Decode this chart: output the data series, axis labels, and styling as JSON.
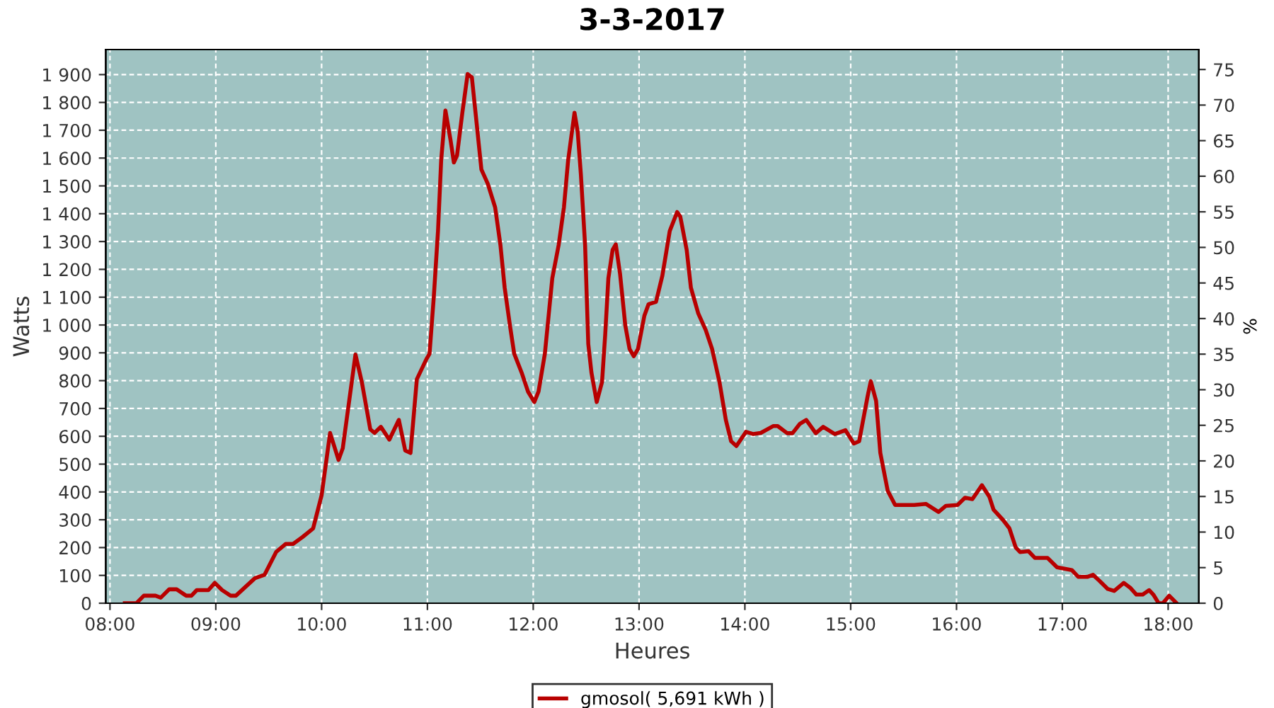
{
  "chart_data": {
    "type": "line",
    "title": "3-3-2017",
    "xlabel": "Heures",
    "ylabel": "Watts",
    "y2label": "%",
    "x": [
      8.14,
      8.25,
      8.32,
      8.43,
      8.48,
      8.56,
      8.63,
      8.72,
      8.77,
      8.82,
      8.93,
      8.99,
      9.06,
      9.14,
      9.19,
      9.37,
      9.46,
      9.57,
      9.66,
      9.73,
      9.82,
      9.92,
      10.0,
      10.08,
      10.16,
      10.2,
      10.32,
      10.38,
      10.46,
      10.5,
      10.56,
      10.64,
      10.73,
      10.79,
      10.84,
      10.9,
      10.99,
      11.02,
      11.06,
      11.1,
      11.13,
      11.17,
      11.22,
      11.25,
      11.28,
      11.33,
      11.38,
      11.42,
      11.45,
      11.51,
      11.57,
      11.64,
      11.69,
      11.73,
      11.78,
      11.82,
      11.89,
      11.95,
      12.01,
      12.05,
      12.11,
      12.18,
      12.24,
      12.29,
      12.33,
      12.39,
      12.42,
      12.45,
      12.49,
      12.52,
      12.55,
      12.6,
      12.65,
      12.68,
      12.71,
      12.75,
      12.78,
      12.82,
      12.87,
      12.91,
      12.95,
      12.99,
      13.05,
      13.09,
      13.16,
      13.22,
      13.29,
      13.36,
      13.39,
      13.45,
      13.49,
      13.56,
      13.63,
      13.69,
      13.76,
      13.82,
      13.87,
      13.92,
      14.01,
      14.08,
      14.15,
      14.27,
      14.31,
      14.4,
      14.45,
      14.52,
      14.58,
      14.67,
      14.74,
      14.85,
      14.95,
      15.03,
      15.08,
      15.16,
      15.19,
      15.24,
      15.28,
      15.35,
      15.42,
      15.6,
      15.71,
      15.83,
      15.9,
      16.01,
      16.08,
      16.15,
      16.24,
      16.31,
      16.35,
      16.44,
      16.5,
      16.56,
      16.6,
      16.68,
      16.74,
      16.86,
      16.95,
      17.09,
      17.15,
      17.24,
      17.29,
      17.35,
      17.43,
      17.49,
      17.58,
      17.64,
      17.7,
      17.76,
      17.82,
      17.86,
      17.91,
      17.95,
      18.01,
      18.08
    ],
    "series": [
      {
        "name": "gmosol( 5,691 kWh )",
        "color": "#b80000",
        "values": [
          0,
          0,
          27,
          27,
          20,
          50,
          50,
          27,
          27,
          47,
          47,
          73,
          47,
          27,
          27,
          90,
          102,
          184,
          213,
          213,
          238,
          269,
          388,
          612,
          515,
          557,
          894,
          795,
          625,
          612,
          634,
          588,
          659,
          549,
          540,
          805,
          877,
          897,
          1100,
          1338,
          1593,
          1771,
          1661,
          1584,
          1610,
          1763,
          1902,
          1890,
          1780,
          1559,
          1508,
          1423,
          1287,
          1134,
          998,
          897,
          829,
          761,
          723,
          761,
          897,
          1168,
          1287,
          1423,
          1593,
          1763,
          1695,
          1542,
          1287,
          932,
          829,
          723,
          795,
          965,
          1168,
          1270,
          1290,
          1185,
          998,
          914,
          888,
          914,
          1033,
          1075,
          1083,
          1177,
          1338,
          1406,
          1389,
          1270,
          1134,
          1041,
          982,
          914,
          795,
          659,
          582,
          565,
          616,
          608,
          612,
          637,
          637,
          611,
          611,
          645,
          659,
          611,
          634,
          608,
          622,
          574,
          582,
          744,
          798,
          727,
          540,
          404,
          353,
          353,
          357,
          328,
          350,
          353,
          379,
          374,
          424,
          383,
          336,
          299,
          269,
          200,
          184,
          187,
          163,
          163,
          129,
          119,
          95,
          95,
          102,
          81,
          51,
          44,
          73,
          56,
          31,
          31,
          47,
          31,
          0,
          0,
          27,
          0
        ]
      }
    ],
    "xlim": [
      7.96,
      18.29
    ],
    "xticks": [
      {
        "value": 8,
        "label": "08:00"
      },
      {
        "value": 9,
        "label": "09:00"
      },
      {
        "value": 10,
        "label": "10:00"
      },
      {
        "value": 11,
        "label": "11:00"
      },
      {
        "value": 12,
        "label": "12:00"
      },
      {
        "value": 13,
        "label": "13:00"
      },
      {
        "value": 14,
        "label": "14:00"
      },
      {
        "value": 15,
        "label": "15:00"
      },
      {
        "value": 16,
        "label": "16:00"
      },
      {
        "value": 17,
        "label": "17:00"
      },
      {
        "value": 18,
        "label": "18:00"
      }
    ],
    "ylim": [
      0,
      1990
    ],
    "yticks": [
      0,
      100,
      200,
      300,
      400,
      500,
      600,
      700,
      800,
      900,
      {
        "value": 1000,
        "label": "1 000"
      },
      {
        "value": 1100,
        "label": "1 100"
      },
      {
        "value": 1200,
        "label": "1 200"
      },
      {
        "value": 1300,
        "label": "1 300"
      },
      {
        "value": 1400,
        "label": "1 400"
      },
      {
        "value": 1500,
        "label": "1 500"
      },
      {
        "value": 1600,
        "label": "1 600"
      },
      {
        "value": 1700,
        "label": "1 700"
      },
      {
        "value": 1800,
        "label": "1 800"
      },
      {
        "value": 1900,
        "label": "1 900"
      }
    ],
    "y2lim": [
      0,
      77.8
    ],
    "y2ticks": [
      0,
      5,
      10,
      15,
      20,
      25,
      30,
      35,
      40,
      45,
      50,
      55,
      60,
      65,
      70,
      75
    ],
    "grid": true,
    "legend": "bottom",
    "marker": "none",
    "line_style": "solid"
  }
}
